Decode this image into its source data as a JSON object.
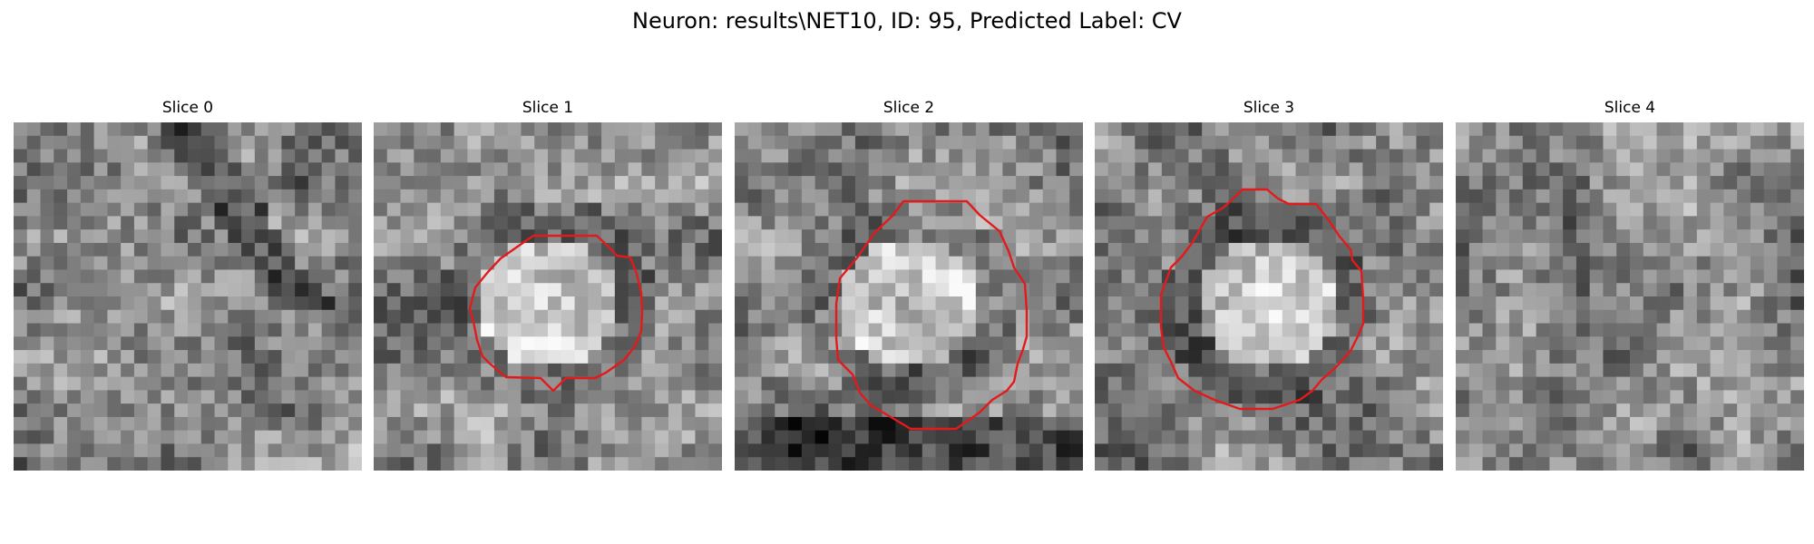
{
  "figure": {
    "title": "Neuron: results\\NET10, ID: 95, Predicted Label: CV"
  },
  "slices": [
    {
      "title": "Slice 0",
      "roi_drawn": false
    },
    {
      "title": "Slice 1",
      "roi_drawn": true
    },
    {
      "title": "Slice 2",
      "roi_drawn": true
    },
    {
      "title": "Slice 3",
      "roi_drawn": true
    },
    {
      "title": "Slice 4",
      "roi_drawn": false
    }
  ],
  "colors": {
    "roi_outline": "#e31a1c",
    "background": "#ffffff",
    "colormap": "gray"
  }
}
